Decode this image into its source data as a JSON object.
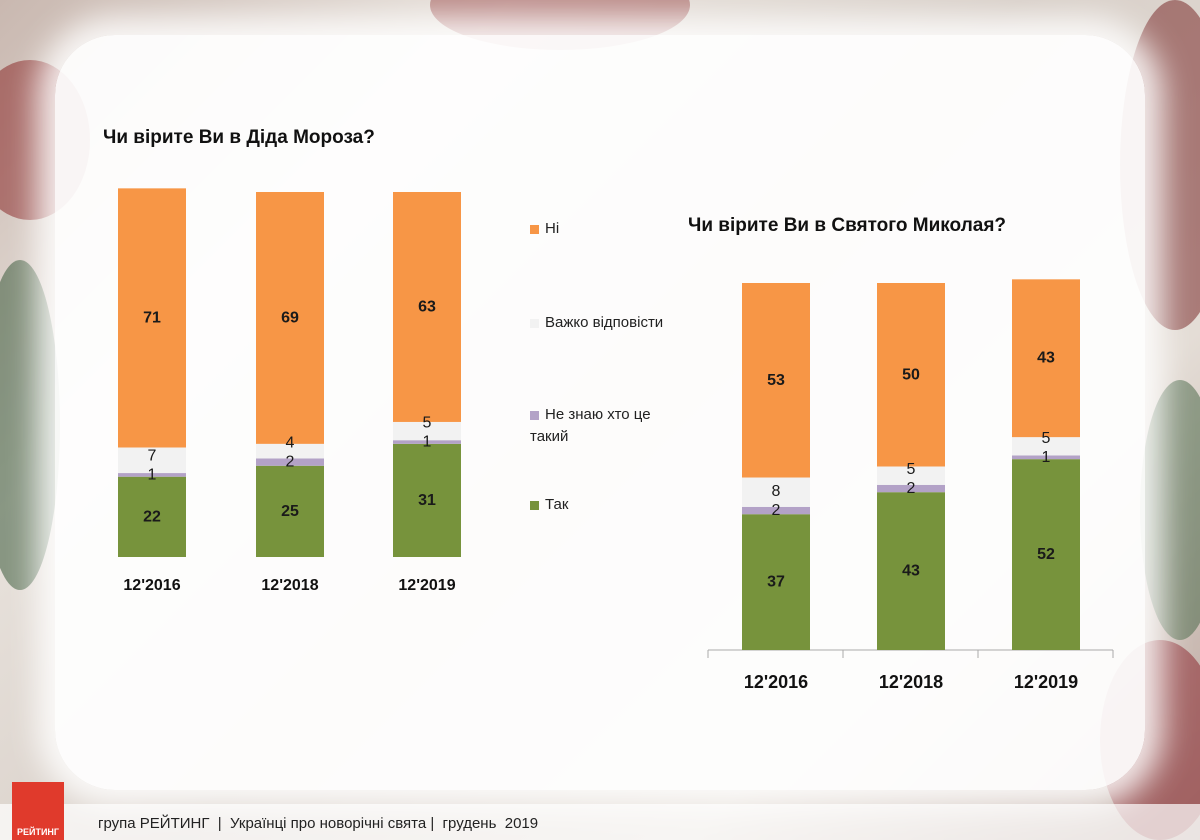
{
  "footer": {
    "logo_text": "РЕЙТИНГ",
    "text": "група РЕЙТИНГ  |  Українці про новорічні свята |  грудень  2019"
  },
  "colors": {
    "Ni": "#f79646",
    "Vazhko": "#f2f2f2",
    "Neznayu": "#b3a2c7",
    "Tak": "#77933c"
  },
  "legend": [
    "Ні",
    "Важко відповісти",
    "Не знаю хто це такий",
    "Так"
  ],
  "chart_data": [
    {
      "type": "bar",
      "stacked": true,
      "title": "Чи вірите Ви в Діда Мороза?",
      "categories": [
        "12'2016",
        "12'2018",
        "12'2019"
      ],
      "series": [
        {
          "name": "Так",
          "values": [
            22,
            25,
            31
          ]
        },
        {
          "name": "Не знаю хто це такий",
          "values": [
            1,
            2,
            1
          ]
        },
        {
          "name": "Важко відповісти",
          "values": [
            7,
            4,
            5
          ]
        },
        {
          "name": "Ні",
          "values": [
            71,
            69,
            63
          ]
        }
      ],
      "ylim": [
        0,
        100
      ]
    },
    {
      "type": "bar",
      "stacked": true,
      "title": "Чи вірите Ви в Святого Миколая?",
      "categories": [
        "12'2016",
        "12'2018",
        "12'2019"
      ],
      "series": [
        {
          "name": "Так",
          "values": [
            37,
            43,
            52
          ]
        },
        {
          "name": "Не знаю хто це такий",
          "values": [
            2,
            2,
            1
          ]
        },
        {
          "name": "Важко відповісти",
          "values": [
            8,
            5,
            5
          ]
        },
        {
          "name": "Ні",
          "values": [
            53,
            50,
            43
          ]
        }
      ],
      "ylim": [
        0,
        100
      ]
    }
  ]
}
